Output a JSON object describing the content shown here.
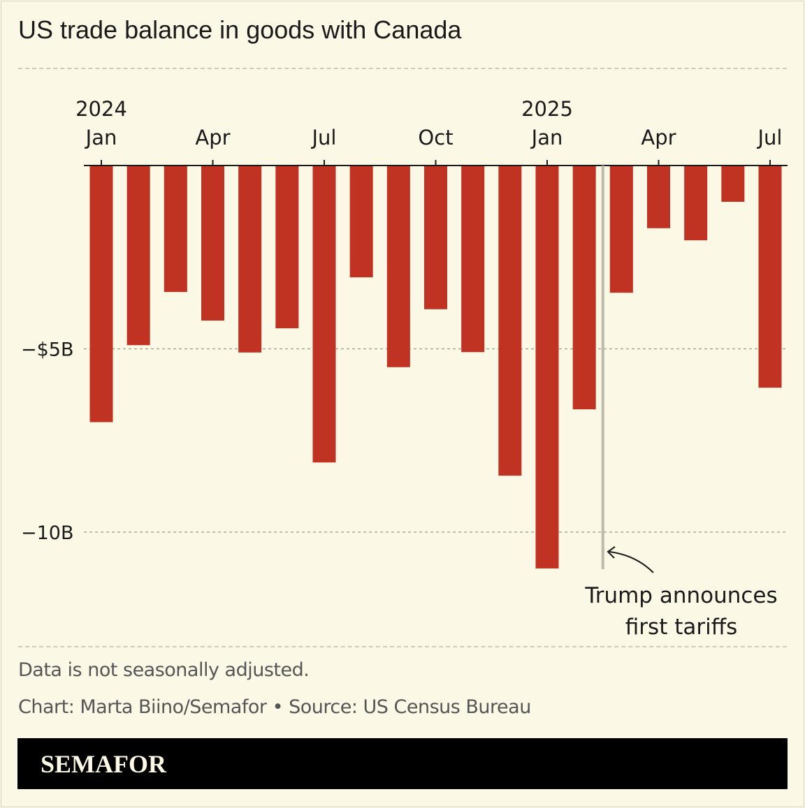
{
  "chart_data": {
    "type": "bar",
    "title": "US trade balance in goods with Canada",
    "categories": [
      "2024-01",
      "2024-02",
      "2024-03",
      "2024-04",
      "2024-05",
      "2024-06",
      "2024-07",
      "2024-08",
      "2024-09",
      "2024-10",
      "2024-11",
      "2024-12",
      "2025-01",
      "2025-02",
      "2025-03",
      "2025-04",
      "2025-05",
      "2025-06",
      "2025-07"
    ],
    "values": [
      -7.0,
      -4.9,
      -3.45,
      -4.23,
      -5.1,
      -4.44,
      -8.1,
      -3.05,
      -5.5,
      -3.92,
      -5.09,
      -8.46,
      -10.99,
      -6.65,
      -3.47,
      -1.71,
      -2.04,
      -0.99,
      -6.06
    ],
    "unit": "billion USD",
    "ylim": [
      -11.5,
      0
    ],
    "grid": true,
    "bar_color": "#c03221",
    "x_ticks": [
      {
        "index": 0,
        "label": "Jan",
        "year": "2024"
      },
      {
        "index": 3,
        "label": "Apr"
      },
      {
        "index": 6,
        "label": "Jul"
      },
      {
        "index": 9,
        "label": "Oct"
      },
      {
        "index": 12,
        "label": "Jan",
        "year": "2025"
      },
      {
        "index": 15,
        "label": "Apr"
      },
      {
        "index": 18,
        "label": "Jul"
      }
    ],
    "y_ticks": [
      {
        "value": -5,
        "label": "−$5B"
      },
      {
        "value": -10,
        "label": "−10B"
      }
    ],
    "annotation": {
      "position_between": [
        13,
        14
      ],
      "lines": [
        "Trump announces",
        "first tariffs"
      ]
    }
  },
  "footer": {
    "note": "Data is not seasonally adjusted.",
    "credit": "Chart: Marta Biino/Semafor • Source: US Census Bureau",
    "brand": "SEMAFOR"
  },
  "colors": {
    "background": "#fbf8e6",
    "bar": "#c03221",
    "brand_bar": "#000000"
  }
}
